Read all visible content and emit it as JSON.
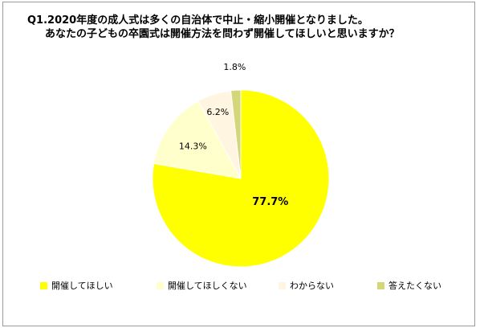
{
  "title": {
    "line1": "Q1.2020年度の成人式は多くの自治体で中止・縮小開催となりました。",
    "line2": "あなたの子どもの卒園式は開催方法を問わず開催してほしいと思いますか？"
  },
  "chart_data": {
    "type": "pie",
    "title": "Q1.2020年度の成人式は多くの自治体で中止・縮小開催となりました。あなたの子どもの卒園式は開催方法を問わず開催してほしいと思いますか？",
    "categories": [
      "開催してほしい",
      "開催してほしくない",
      "わからない",
      "答えたくない"
    ],
    "values": [
      77.7,
      14.3,
      6.2,
      1.8
    ],
    "labels": [
      "77.7%",
      "14.3%",
      "6.2%",
      "1.8%"
    ],
    "colors": [
      "#ffff00",
      "#ffffcc",
      "#fff5e0",
      "#d4d67a"
    ],
    "legend_position": "bottom"
  }
}
